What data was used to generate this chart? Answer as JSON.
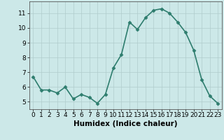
{
  "xlabel": "Humidex (Indice chaleur)",
  "x": [
    0,
    1,
    2,
    3,
    4,
    5,
    6,
    7,
    8,
    9,
    10,
    11,
    12,
    13,
    14,
    15,
    16,
    17,
    18,
    19,
    20,
    21,
    22,
    23
  ],
  "y": [
    6.7,
    5.8,
    5.8,
    5.6,
    6.0,
    5.2,
    5.5,
    5.3,
    4.9,
    5.5,
    7.3,
    8.2,
    10.4,
    9.9,
    10.7,
    11.2,
    11.3,
    11.0,
    10.4,
    9.7,
    8.5,
    6.5,
    5.4,
    4.9
  ],
  "line_color": "#2e7d6e",
  "marker": "D",
  "marker_size": 2.5,
  "bg_color": "#cce8e8",
  "grid_color": "#b0cccc",
  "ylim": [
    4.5,
    11.8
  ],
  "xlim": [
    -0.5,
    23.5
  ],
  "yticks": [
    5,
    6,
    7,
    8,
    9,
    10,
    11
  ],
  "xticks": [
    0,
    1,
    2,
    3,
    4,
    5,
    6,
    7,
    8,
    9,
    10,
    11,
    12,
    13,
    14,
    15,
    16,
    17,
    18,
    19,
    20,
    21,
    22,
    23
  ],
  "xlabel_fontsize": 7.5,
  "tick_fontsize": 6.5,
  "linewidth": 1.2
}
